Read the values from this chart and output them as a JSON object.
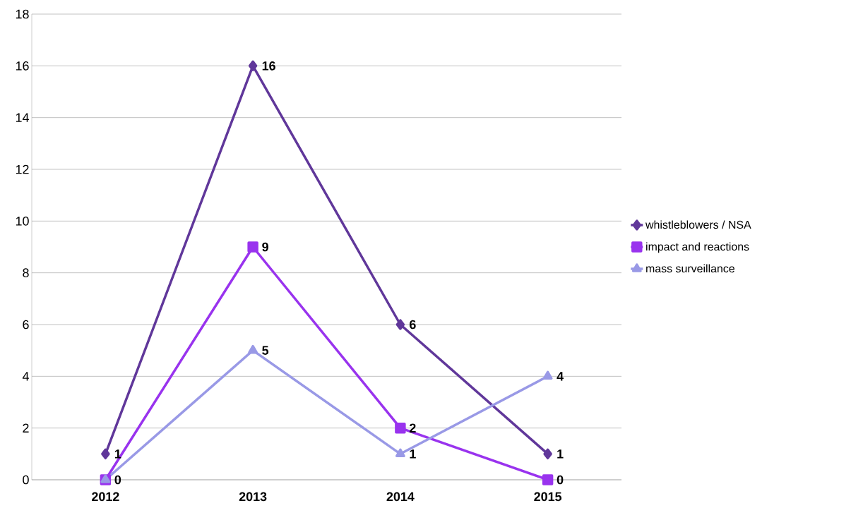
{
  "chart_data": {
    "type": "line",
    "categories": [
      "2012",
      "2013",
      "2014",
      "2015"
    ],
    "series": [
      {
        "name": "whistleblowers / NSA",
        "color": "#60379a",
        "marker": "diamond",
        "values": [
          1,
          16,
          6,
          1
        ],
        "value_labels": [
          "1",
          "16",
          "6",
          "1"
        ]
      },
      {
        "name": "impact and reactions",
        "color": "#9933ee",
        "marker": "square",
        "values": [
          0,
          9,
          2,
          0
        ],
        "value_labels": [
          null,
          "9",
          "2",
          "0"
        ]
      },
      {
        "name": "mass surveillance",
        "color": "#9999e6",
        "marker": "triangle",
        "values": [
          0,
          5,
          1,
          4
        ],
        "value_labels": [
          "0",
          "5",
          "1",
          "4"
        ]
      }
    ],
    "ylim": [
      0,
      18
    ],
    "yticks": [
      0,
      2,
      4,
      6,
      8,
      10,
      12,
      14,
      16,
      18
    ],
    "grid": "y",
    "legend": "right",
    "line_style": "solid"
  }
}
